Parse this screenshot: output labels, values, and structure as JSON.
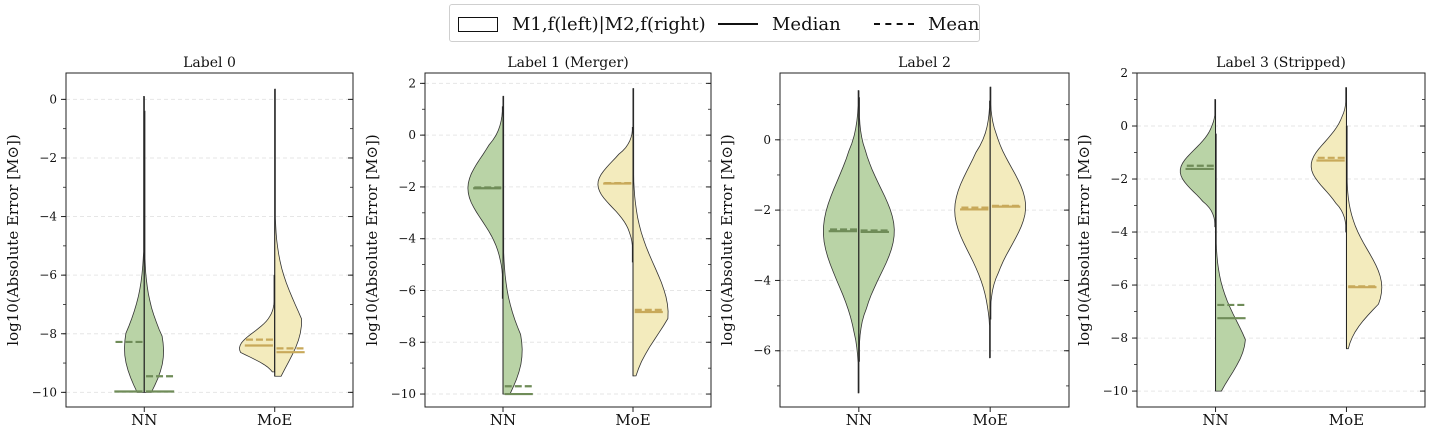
{
  "legend": {
    "box_label": "M1,f(left)|M2,f(right)",
    "median_label": "Median",
    "mean_label": "Mean"
  },
  "colors": {
    "nn_fill": "#b9d3a6",
    "nn_line": "#6f8c58",
    "moe_fill": "#f3ebbd",
    "moe_line": "#c8a95a",
    "outline": "#333333"
  },
  "chart_data": [
    {
      "type": "violin",
      "title": "Label 0",
      "ylabel": "log10(Absolute Error [M⊙])",
      "categories": [
        "NN",
        "MoE"
      ],
      "ylim": [
        -10.5,
        0.9
      ],
      "yticks": [
        0,
        -2,
        -4,
        -6,
        -8,
        -10
      ],
      "grid": true,
      "groups": [
        {
          "name": "NN",
          "left": {
            "median": -9.97,
            "mean": -8.28,
            "min": -10.0,
            "max": 0.1,
            "peak": -9.9
          },
          "right": {
            "median": -9.97,
            "mean": -9.45,
            "min": -10.0,
            "max": -0.4,
            "peak": -9.95
          }
        },
        {
          "name": "MoE",
          "left": {
            "median": -8.4,
            "mean": -8.2,
            "min": -9.3,
            "max": -6.0,
            "peak": -8.5
          },
          "right": {
            "median": -8.63,
            "mean": -8.5,
            "min": -9.45,
            "max": 0.35,
            "peak": -8.7
          }
        }
      ]
    },
    {
      "type": "violin",
      "title": "Label 1 (Merger)",
      "ylabel": "log10(Absolute Error [M⊙])",
      "categories": [
        "NN",
        "MoE"
      ],
      "ylim": [
        -10.5,
        2.4
      ],
      "yticks": [
        2,
        0,
        -2,
        -4,
        -6,
        -8,
        -10
      ],
      "grid": true,
      "groups": [
        {
          "name": "NN",
          "left": {
            "median": -2.05,
            "mean": -2.02,
            "min": -6.3,
            "max": 1.1,
            "peak": -2.05
          },
          "right": {
            "median": -10.0,
            "mean": -9.7,
            "min": -10.0,
            "max": 1.5,
            "peak": -9.95
          }
        },
        {
          "name": "MoE",
          "left": {
            "median": -1.87,
            "mean": -1.85,
            "min": -4.9,
            "max": 0.3,
            "peak": -1.9
          },
          "right": {
            "median": -6.83,
            "mean": -6.75,
            "min": -9.3,
            "max": 1.8,
            "peak": -6.9
          }
        }
      ]
    },
    {
      "type": "violin",
      "title": "Label 2",
      "ylabel": "log10(Absolute Error [M⊙])",
      "categories": [
        "NN",
        "MoE"
      ],
      "ylim": [
        -7.6,
        1.9
      ],
      "yticks": [
        0,
        -2,
        -4,
        -6
      ],
      "grid": true,
      "groups": [
        {
          "name": "NN",
          "left": {
            "median": -2.6,
            "mean": -2.55,
            "min": -7.2,
            "max": 1.4,
            "peak": -2.6
          },
          "right": {
            "median": -2.62,
            "mean": -2.58,
            "min": -6.3,
            "max": 1.2,
            "peak": -2.6
          }
        },
        {
          "name": "MoE",
          "left": {
            "median": -1.98,
            "mean": -1.93,
            "min": -6.2,
            "max": 1.1,
            "peak": -2.0
          },
          "right": {
            "median": -1.9,
            "mean": -1.88,
            "min": -5.1,
            "max": 1.5,
            "peak": -1.9
          }
        }
      ]
    },
    {
      "type": "violin",
      "title": "Label 3 (Stripped)",
      "ylabel": "log10(Absolute Error [M⊙])",
      "categories": [
        "NN",
        "MoE"
      ],
      "ylim": [
        -10.6,
        2.0
      ],
      "yticks": [
        2,
        0,
        -2,
        -4,
        -6,
        -8,
        -10
      ],
      "grid": true,
      "groups": [
        {
          "name": "NN",
          "left": {
            "median": -1.62,
            "mean": -1.5,
            "min": -3.8,
            "max": 1.0,
            "peak": -1.7
          },
          "right": {
            "median": -7.25,
            "mean": -6.75,
            "min": -10.0,
            "max": -0.3,
            "peak": -9.0
          }
        },
        {
          "name": "MoE",
          "left": {
            "median": -1.3,
            "mean": -1.2,
            "min": -4.0,
            "max": 1.45,
            "peak": -1.5
          },
          "right": {
            "median": -6.08,
            "mean": -6.05,
            "min": -8.4,
            "max": -0.0,
            "peak": -6.1
          }
        }
      ]
    }
  ]
}
